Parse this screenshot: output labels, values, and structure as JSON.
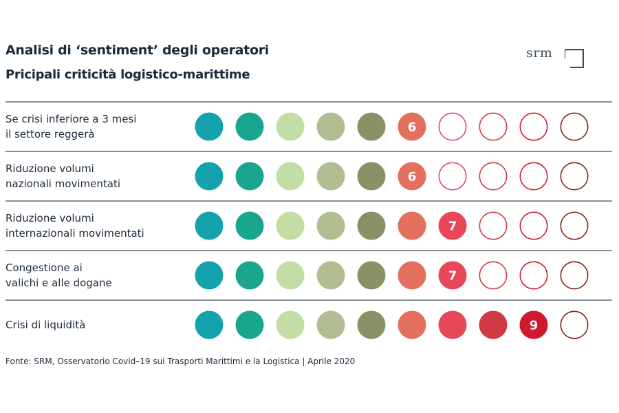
{
  "header": {
    "title": "Analisi di ‘sentiment’ degli operatori",
    "subtitle": "Pricipali criticità logistico-marittime"
  },
  "logo": {
    "text": "srm"
  },
  "colors": {
    "scale": [
      "#14a2ad",
      "#1aa58e",
      "#c2dea5",
      "#b1bd91",
      "#8a9167",
      "#e3705f",
      "#e8475a",
      "#d03a44",
      "#d0192d",
      "#7d2818"
    ],
    "divider": "#3f4d5a",
    "score_text": "#ffffff"
  },
  "chart_data": {
    "type": "table",
    "scale_max": 10,
    "rows": [
      {
        "label": [
          "Se crisi inferiore a 3 mesi",
          "il settore reggerà"
        ],
        "score": 6
      },
      {
        "label": [
          "Riduzione volumi",
          "nazionali movimentati"
        ],
        "score": 6
      },
      {
        "label": [
          "Riduzione volumi",
          "internazionali  movimentati"
        ],
        "score": 7
      },
      {
        "label": [
          "Congestione ai",
          "valichi e alle dogane"
        ],
        "score": 7
      },
      {
        "label": [
          "Crisi di liquidità"
        ],
        "score": 9
      }
    ]
  },
  "source": "Fonte: SRM, Osservatorio Covid–19 sui Trasporti Marittimi e la Logistica | Aprile 2020"
}
